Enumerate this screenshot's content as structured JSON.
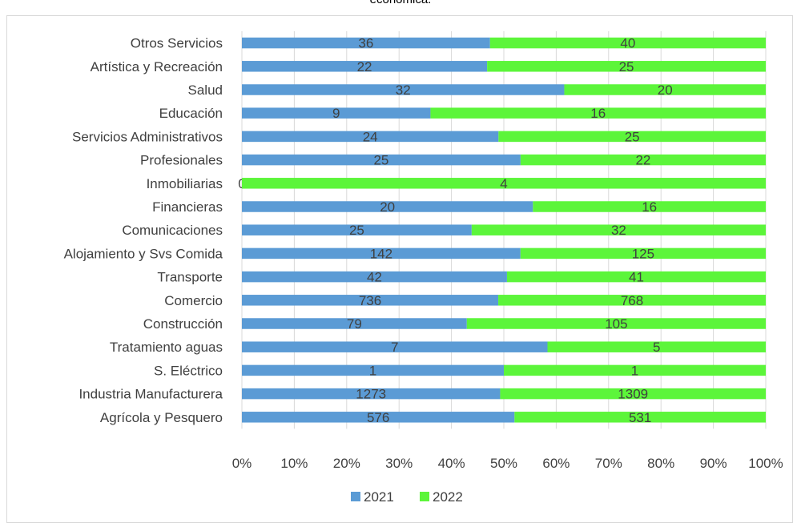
{
  "title_fragment": "económica.",
  "chart_data": {
    "type": "bar",
    "orientation": "horizontal",
    "stacking": "percent",
    "categories": [
      "Otros Servicios",
      "Artística y Recreación",
      "Salud",
      "Educación",
      "Servicios Administrativos",
      "Profesionales",
      "Inmobiliarias",
      "Financieras",
      "Comunicaciones",
      "Alojamiento y Svs Comida",
      "Transporte",
      "Comercio",
      "Construcción",
      "Tratamiento aguas",
      "S. Eléctrico",
      "Industria Manufacturera",
      "Agrícola y Pesquero"
    ],
    "series": [
      {
        "name": "2021",
        "color": "#5b9bd5",
        "values": [
          36,
          22,
          32,
          9,
          24,
          25,
          0,
          20,
          25,
          142,
          42,
          736,
          79,
          7,
          1,
          1273,
          576
        ]
      },
      {
        "name": "2022",
        "color": "#5cf53a",
        "values": [
          40,
          25,
          20,
          16,
          25,
          22,
          4,
          16,
          32,
          125,
          41,
          768,
          105,
          5,
          1,
          1309,
          531
        ]
      }
    ],
    "x_ticks": [
      "0%",
      "10%",
      "20%",
      "30%",
      "40%",
      "50%",
      "60%",
      "70%",
      "80%",
      "90%",
      "100%"
    ],
    "xlim": [
      0,
      100
    ],
    "grid": true,
    "legend_position": "bottom"
  }
}
